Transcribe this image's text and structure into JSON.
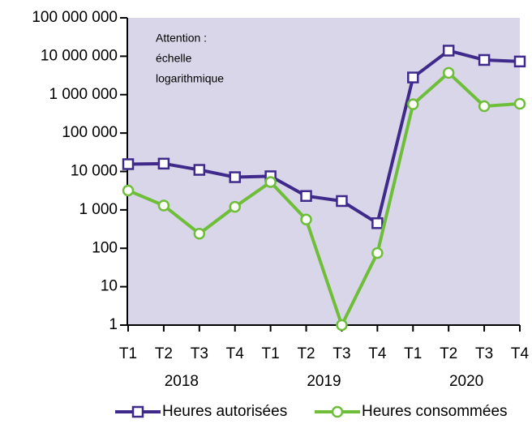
{
  "chart_data": {
    "type": "line",
    "log_scale": true,
    "background": "#d9d6ea",
    "annotation": [
      "Attention :",
      "échelle",
      "logarithmique"
    ],
    "categories": [
      "T1",
      "T2",
      "T3",
      "T4",
      "T1",
      "T2",
      "T3",
      "T4",
      "T1",
      "T2",
      "T3",
      "T4"
    ],
    "years": [
      "2018",
      "2019",
      "2020"
    ],
    "series": [
      {
        "name": "Heures autorisées",
        "color": "#3f2a8c",
        "marker": "square",
        "values": [
          15500,
          16000,
          11000,
          7100,
          7500,
          2300,
          1700,
          450,
          2800000,
          14000000,
          8000000,
          7300000
        ]
      },
      {
        "name": "Heures consommées",
        "color": "#6fbe3a",
        "marker": "circle",
        "values": [
          3200,
          1300,
          240,
          1200,
          5300,
          560,
          1,
          75,
          560000,
          3700000,
          500000,
          580000
        ]
      }
    ],
    "ylim": [
      1,
      100000000
    ],
    "yticks": [
      {
        "value": 1,
        "label": "1"
      },
      {
        "value": 10,
        "label": "10"
      },
      {
        "value": 100,
        "label": "100"
      },
      {
        "value": 1000,
        "label": "1 000"
      },
      {
        "value": 10000,
        "label": "10 000"
      },
      {
        "value": 100000,
        "label": "100 000"
      },
      {
        "value": 1000000,
        "label": "1 000 000"
      },
      {
        "value": 10000000,
        "label": "10 000 000"
      },
      {
        "value": 100000000,
        "label": "100 000 000"
      }
    ]
  }
}
